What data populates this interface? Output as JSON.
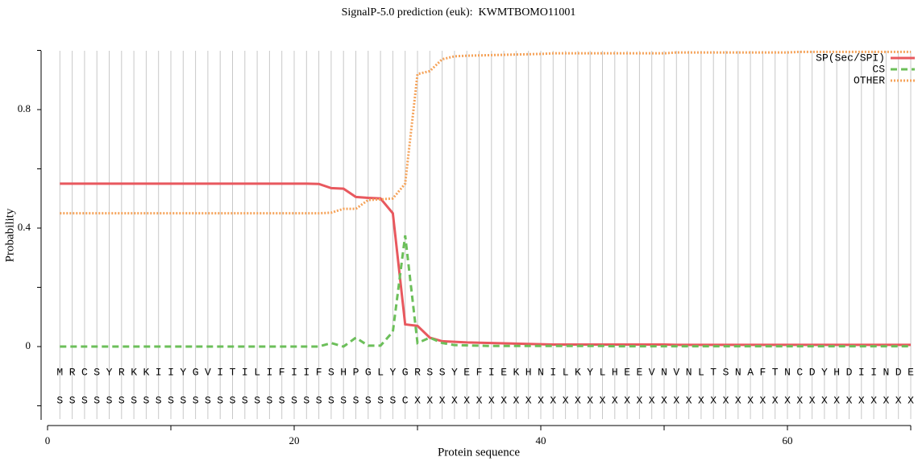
{
  "chart_data": {
    "type": "line",
    "title": "SignalP-5.0 prediction (euk):  KWMTBOMO11001",
    "xlabel": "Protein sequence",
    "ylabel": "Probability",
    "xlim": [
      0,
      70
    ],
    "xticks": [
      0,
      20,
      40,
      60
    ],
    "xminorticks": [
      10,
      30,
      50,
      70
    ],
    "ylim": [
      -0.25,
      1
    ],
    "yticks": [
      0,
      0.4,
      0.8
    ],
    "yminorticks": [
      -0.2,
      0.2,
      0.6,
      1
    ],
    "grid": true,
    "legend": "upper right",
    "x": [
      1,
      2,
      3,
      4,
      5,
      6,
      7,
      8,
      9,
      10,
      11,
      12,
      13,
      14,
      15,
      16,
      17,
      18,
      19,
      20,
      21,
      22,
      23,
      24,
      25,
      26,
      27,
      28,
      29,
      30,
      31,
      32,
      33,
      34,
      35,
      36,
      37,
      38,
      39,
      40,
      41,
      42,
      43,
      44,
      45,
      46,
      47,
      48,
      49,
      50,
      51,
      52,
      53,
      54,
      55,
      56,
      57,
      58,
      59,
      60,
      61,
      62,
      63,
      64,
      65,
      66,
      67,
      68,
      69,
      70
    ],
    "sequence": [
      "M",
      "R",
      "C",
      "S",
      "Y",
      "R",
      "K",
      "K",
      "I",
      "I",
      "Y",
      "G",
      "V",
      "I",
      "T",
      "I",
      "L",
      "I",
      "F",
      "I",
      "I",
      "F",
      "S",
      "H",
      "P",
      "G",
      "L",
      "Y",
      "G",
      "R",
      "S",
      "S",
      "Y",
      "E",
      "F",
      "I",
      "E",
      "K",
      "H",
      "N",
      "I",
      "L",
      "K",
      "Y",
      "L",
      "H",
      "E",
      "E",
      "V",
      "N",
      "V",
      "N",
      "L",
      "T",
      "S",
      "N",
      "A",
      "F",
      "T",
      "N",
      "C",
      "D",
      "Y",
      "H",
      "D",
      "I",
      "I",
      "N",
      "D",
      "E"
    ],
    "annotation": [
      "S",
      "S",
      "S",
      "S",
      "S",
      "S",
      "S",
      "S",
      "S",
      "S",
      "S",
      "S",
      "S",
      "S",
      "S",
      "S",
      "S",
      "S",
      "S",
      "S",
      "S",
      "S",
      "S",
      "S",
      "S",
      "S",
      "S",
      "S",
      "C",
      "X",
      "X",
      "X",
      "X",
      "X",
      "X",
      "X",
      "X",
      "X",
      "X",
      "X",
      "X",
      "X",
      "X",
      "X",
      "X",
      "X",
      "X",
      "X",
      "X",
      "X",
      "X",
      "X",
      "X",
      "X",
      "X",
      "X",
      "X",
      "X",
      "X",
      "X",
      "X",
      "X",
      "X",
      "X",
      "X",
      "X",
      "X",
      "X",
      "X",
      "X"
    ],
    "series": [
      {
        "name": "SP(Sec/SPI)",
        "color": "#e8585e",
        "dash": "solid",
        "values": [
          0.55,
          0.55,
          0.55,
          0.55,
          0.55,
          0.55,
          0.55,
          0.55,
          0.55,
          0.55,
          0.55,
          0.55,
          0.55,
          0.55,
          0.55,
          0.55,
          0.55,
          0.55,
          0.55,
          0.55,
          0.55,
          0.549,
          0.535,
          0.533,
          0.505,
          0.502,
          0.5,
          0.45,
          0.075,
          0.07,
          0.03,
          0.018,
          0.016,
          0.014,
          0.013,
          0.012,
          0.011,
          0.01,
          0.009,
          0.008,
          0.007,
          0.007,
          0.007,
          0.007,
          0.007,
          0.007,
          0.007,
          0.007,
          0.007,
          0.007,
          0.006,
          0.006,
          0.006,
          0.006,
          0.006,
          0.006,
          0.006,
          0.006,
          0.006,
          0.006,
          0.006,
          0.006,
          0.006,
          0.006,
          0.006,
          0.006,
          0.006,
          0.006,
          0.006,
          0.006
        ]
      },
      {
        "name": "CS",
        "color": "#6cbf5a",
        "dash": "dashed",
        "values": [
          0,
          0,
          0,
          0,
          0,
          0,
          0,
          0,
          0,
          0,
          0,
          0,
          0,
          0,
          0,
          0,
          0,
          0,
          0,
          0,
          0,
          0,
          0.012,
          0,
          0.03,
          0.003,
          0.003,
          0.05,
          0.375,
          0.012,
          0.03,
          0.012,
          0.005,
          0.004,
          0.003,
          0.002,
          0.002,
          0.002,
          0.002,
          0.002,
          0.002,
          0.002,
          0.002,
          0.002,
          0.002,
          0.001,
          0.001,
          0.001,
          0.001,
          0.001,
          0.001,
          0.001,
          0.001,
          0.001,
          0.001,
          0.001,
          0.001,
          0.001,
          0.001,
          0.001,
          0.001,
          0.001,
          0.001,
          0.001,
          0.001,
          0.001,
          0.001,
          0.001,
          0.001,
          0.001
        ]
      },
      {
        "name": "OTHER",
        "color": "#f5a35a",
        "dash": "dotted",
        "values": [
          0.45,
          0.45,
          0.45,
          0.45,
          0.45,
          0.45,
          0.45,
          0.45,
          0.45,
          0.45,
          0.45,
          0.45,
          0.45,
          0.45,
          0.45,
          0.45,
          0.45,
          0.45,
          0.45,
          0.45,
          0.45,
          0.45,
          0.452,
          0.465,
          0.465,
          0.495,
          0.497,
          0.5,
          0.55,
          0.92,
          0.93,
          0.97,
          0.98,
          0.982,
          0.983,
          0.984,
          0.985,
          0.986,
          0.987,
          0.988,
          0.99,
          0.99,
          0.99,
          0.99,
          0.99,
          0.99,
          0.99,
          0.99,
          0.99,
          0.99,
          0.993,
          0.993,
          0.993,
          0.993,
          0.993,
          0.993,
          0.993,
          0.993,
          0.993,
          0.993,
          0.995,
          0.995,
          0.995,
          0.995,
          0.995,
          0.995,
          0.995,
          0.995,
          0.995,
          0.995
        ]
      }
    ]
  }
}
